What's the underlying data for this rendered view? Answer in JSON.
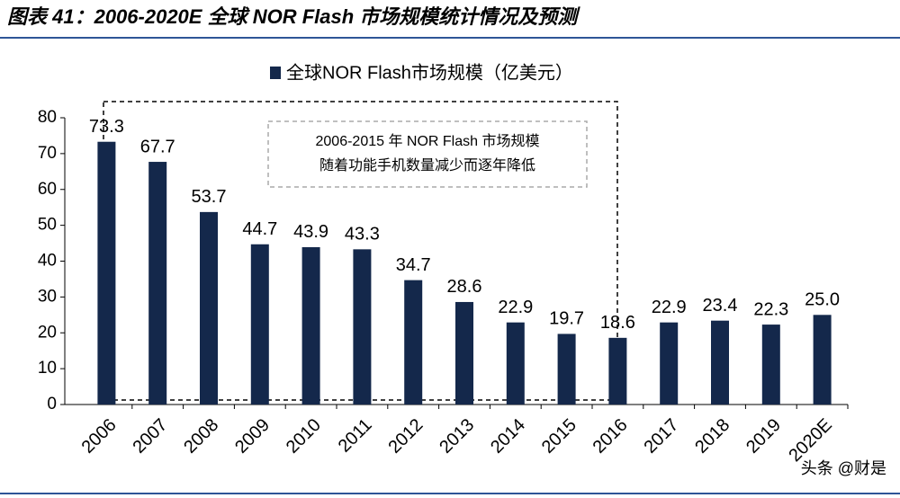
{
  "chart_data": {
    "type": "bar",
    "title": "图表 41：2006-2020E 全球 NOR Flash 市场规模统计情况及预测",
    "categories": [
      "2006",
      "2007",
      "2008",
      "2009",
      "2010",
      "2011",
      "2012",
      "2013",
      "2014",
      "2015",
      "2016",
      "2017",
      "2018",
      "2019",
      "2020E"
    ],
    "series": [
      {
        "name": "全球NOR Flash市场规模（亿美元）",
        "color": "#14284b",
        "values": [
          73.3,
          67.7,
          53.7,
          44.7,
          43.9,
          43.3,
          34.7,
          28.6,
          22.9,
          19.7,
          18.6,
          22.9,
          23.4,
          22.3,
          25.0
        ],
        "value_labels": [
          "73.3",
          "67.7",
          "53.7",
          "44.7",
          "43.9",
          "43.3",
          "34.7",
          "28.6",
          "22.9",
          "19.7",
          "18.6",
          "22.9",
          "23.4",
          "22.3",
          "25.0"
        ]
      }
    ],
    "ylim": [
      0,
      80
    ],
    "yticks": [
      0,
      10,
      20,
      30,
      40,
      50,
      60,
      70,
      80
    ],
    "grid": false,
    "annotation": [
      "2006-2015 年 NOR Flash 市场规模",
      "随着功能手机数量减少而逐年降低"
    ],
    "watermark": "头条 @财是"
  }
}
